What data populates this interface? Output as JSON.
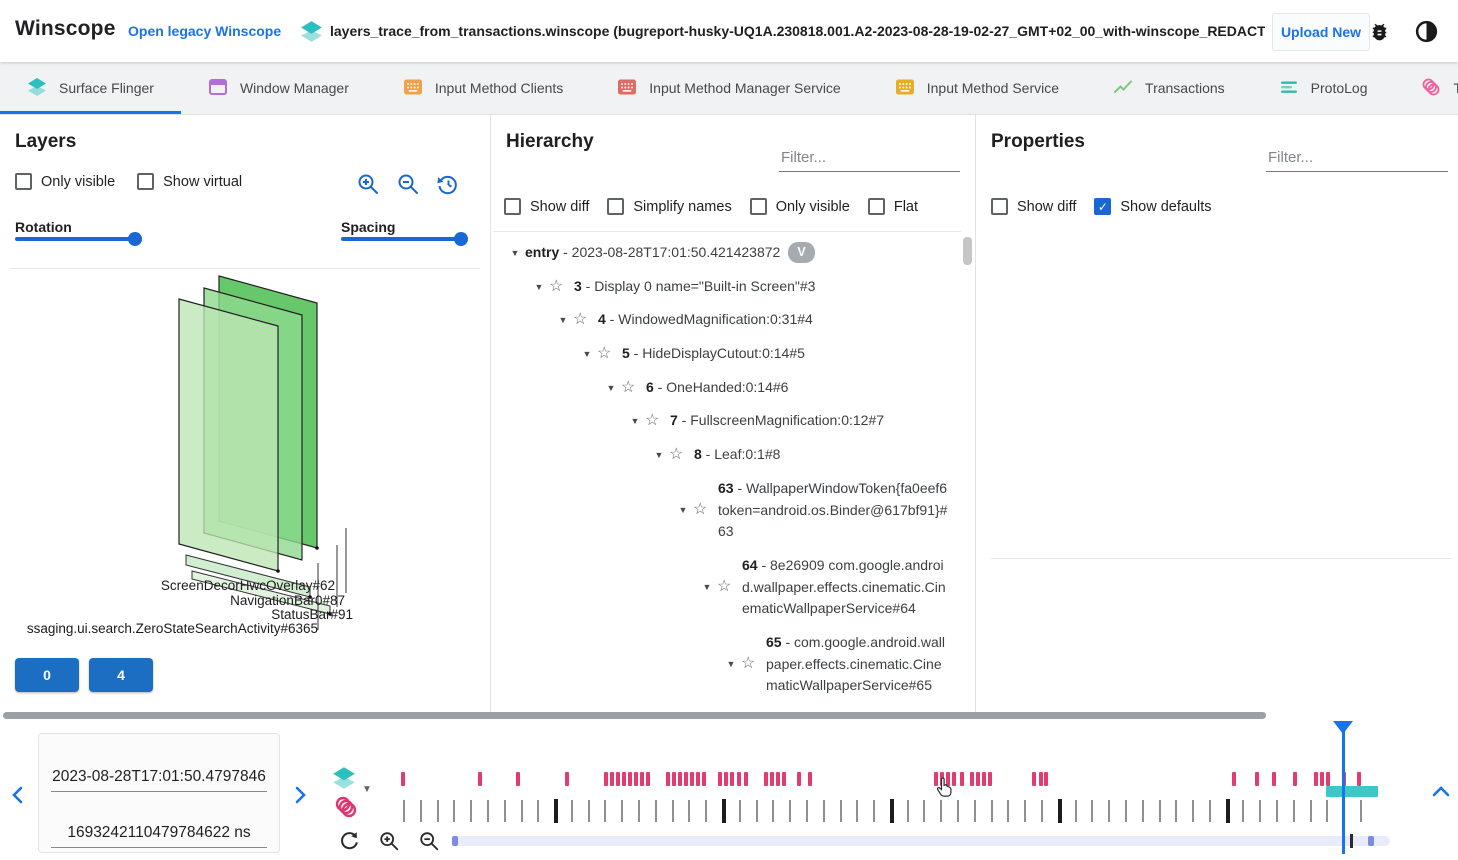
{
  "header": {
    "app_title": "Winscope",
    "legacy_link": "Open legacy Winscope",
    "trace_file": "layers_trace_from_transactions.winscope (bugreport-husky-UQ1A.230818.001.A2-2023-08-28-19-02-27_GMT+02_00_with-winscope_REDACTED.zip)",
    "upload_button": "Upload New"
  },
  "tabs": [
    {
      "label": "Surface Flinger",
      "icon": "layers",
      "color": "#2bbfbf",
      "active": true
    },
    {
      "label": "Window Manager",
      "icon": "window",
      "color": "#b06fd6",
      "active": false
    },
    {
      "label": "Input Method Clients",
      "icon": "keyboard",
      "color": "#f2a04a",
      "active": false
    },
    {
      "label": "Input Method Manager Service",
      "icon": "keyboard",
      "color": "#e06a66",
      "active": false
    },
    {
      "label": "Input Method Service",
      "icon": "keyboard",
      "color": "#e5ae26",
      "active": false
    },
    {
      "label": "Transactions",
      "icon": "chart",
      "color": "#7ec77f",
      "active": false
    },
    {
      "label": "ProtoLog",
      "icon": "lines",
      "color": "#35b8ac",
      "active": false
    },
    {
      "label": "Transitions",
      "icon": "rings",
      "color": "#f0609a",
      "active": false
    }
  ],
  "layers_panel": {
    "title": "Layers",
    "checkboxes": [
      {
        "label": "Only visible",
        "checked": false
      },
      {
        "label": "Show virtual",
        "checked": false
      }
    ],
    "rotation_label": "Rotation",
    "spacing_label": "Spacing",
    "layer_labels": [
      "ScreenDecorHwcOverlay#62",
      "NavigationBar0#87",
      "StatusBar#91",
      "ssaging.ui.search.ZeroStateSearchActivity#6365"
    ],
    "rect_buttons": [
      "0",
      "4"
    ]
  },
  "hierarchy_panel": {
    "title": "Hierarchy",
    "filter_placeholder": "Filter...",
    "checkboxes": [
      {
        "label": "Show diff",
        "checked": false
      },
      {
        "label": "Simplify names",
        "checked": false
      },
      {
        "label": "Only visible",
        "checked": false
      },
      {
        "label": "Flat",
        "checked": false
      }
    ],
    "tree": [
      {
        "depth": 0,
        "num": "entry",
        "text": " - 2023-08-28T17:01:50.421423872",
        "chip": "V",
        "star": false
      },
      {
        "depth": 1,
        "num": "3",
        "text": " - Display 0 name=\"Built-in Screen\"#3",
        "star": true
      },
      {
        "depth": 2,
        "num": "4",
        "text": " - WindowedMagnification:0:31#4",
        "star": true
      },
      {
        "depth": 3,
        "num": "5",
        "text": " - HideDisplayCutout:0:14#5",
        "star": true
      },
      {
        "depth": 4,
        "num": "6",
        "text": " - OneHanded:0:14#6",
        "star": true
      },
      {
        "depth": 5,
        "num": "7",
        "text": " - FullscreenMagnification:0:12#7",
        "star": true
      },
      {
        "depth": 6,
        "num": "8",
        "text": " - Leaf:0:1#8",
        "star": true
      },
      {
        "depth": 7,
        "num": "63",
        "text": " - WallpaperWindowToken{fa0eef6 token=android.os.Binder@617bf91}#63",
        "star": true
      },
      {
        "depth": 8,
        "num": "64",
        "text": " - 8e26909 com.google.android.wallpaper.effects.cinematic.CinematicWallpaperService#64",
        "star": true
      },
      {
        "depth": 9,
        "num": "65",
        "text": " - com.google.android.wallpaper.effects.cinematic.CinematicWallpaperService#65",
        "star": true
      }
    ]
  },
  "properties_panel": {
    "title": "Properties",
    "filter_placeholder": "Filter...",
    "checkboxes": [
      {
        "label": "Show diff",
        "checked": false
      },
      {
        "label": "Show defaults",
        "checked": true
      }
    ]
  },
  "timeline": {
    "timestamp_human": "2023-08-28T17:01:50.4797846",
    "timestamp_ns": "1693242110479784622 ns",
    "pink_markers_pct": [
      0.001,
      0.079,
      0.117,
      0.167,
      0.206,
      0.212,
      0.218,
      0.224,
      0.23,
      0.236,
      0.242,
      0.248,
      0.269,
      0.275,
      0.281,
      0.287,
      0.293,
      0.299,
      0.305,
      0.321,
      0.327,
      0.333,
      0.34,
      0.347,
      0.368,
      0.374,
      0.38,
      0.386,
      0.401,
      0.412,
      0.539,
      0.545,
      0.552,
      0.558,
      0.566,
      0.576,
      0.582,
      0.588,
      0.594,
      0.638,
      0.645,
      0.651,
      0.84,
      0.864,
      0.881,
      0.902,
      0.923,
      0.929,
      0.935,
      0.952,
      0.967
    ],
    "tick_count": 58,
    "thick_tick_indexes": [
      9,
      19,
      29,
      39,
      49
    ],
    "cursor_pct": 0.952,
    "range_start_pct": 0.935,
    "range_width_pct": 0.053,
    "colors": {
      "accent_blue": "#1a73e8",
      "event_pink": "#e23b6f",
      "selection_teal": "#3cc8c8",
      "tick_gray": "#8f8f8f",
      "tick_black": "#1c1c1c"
    }
  }
}
